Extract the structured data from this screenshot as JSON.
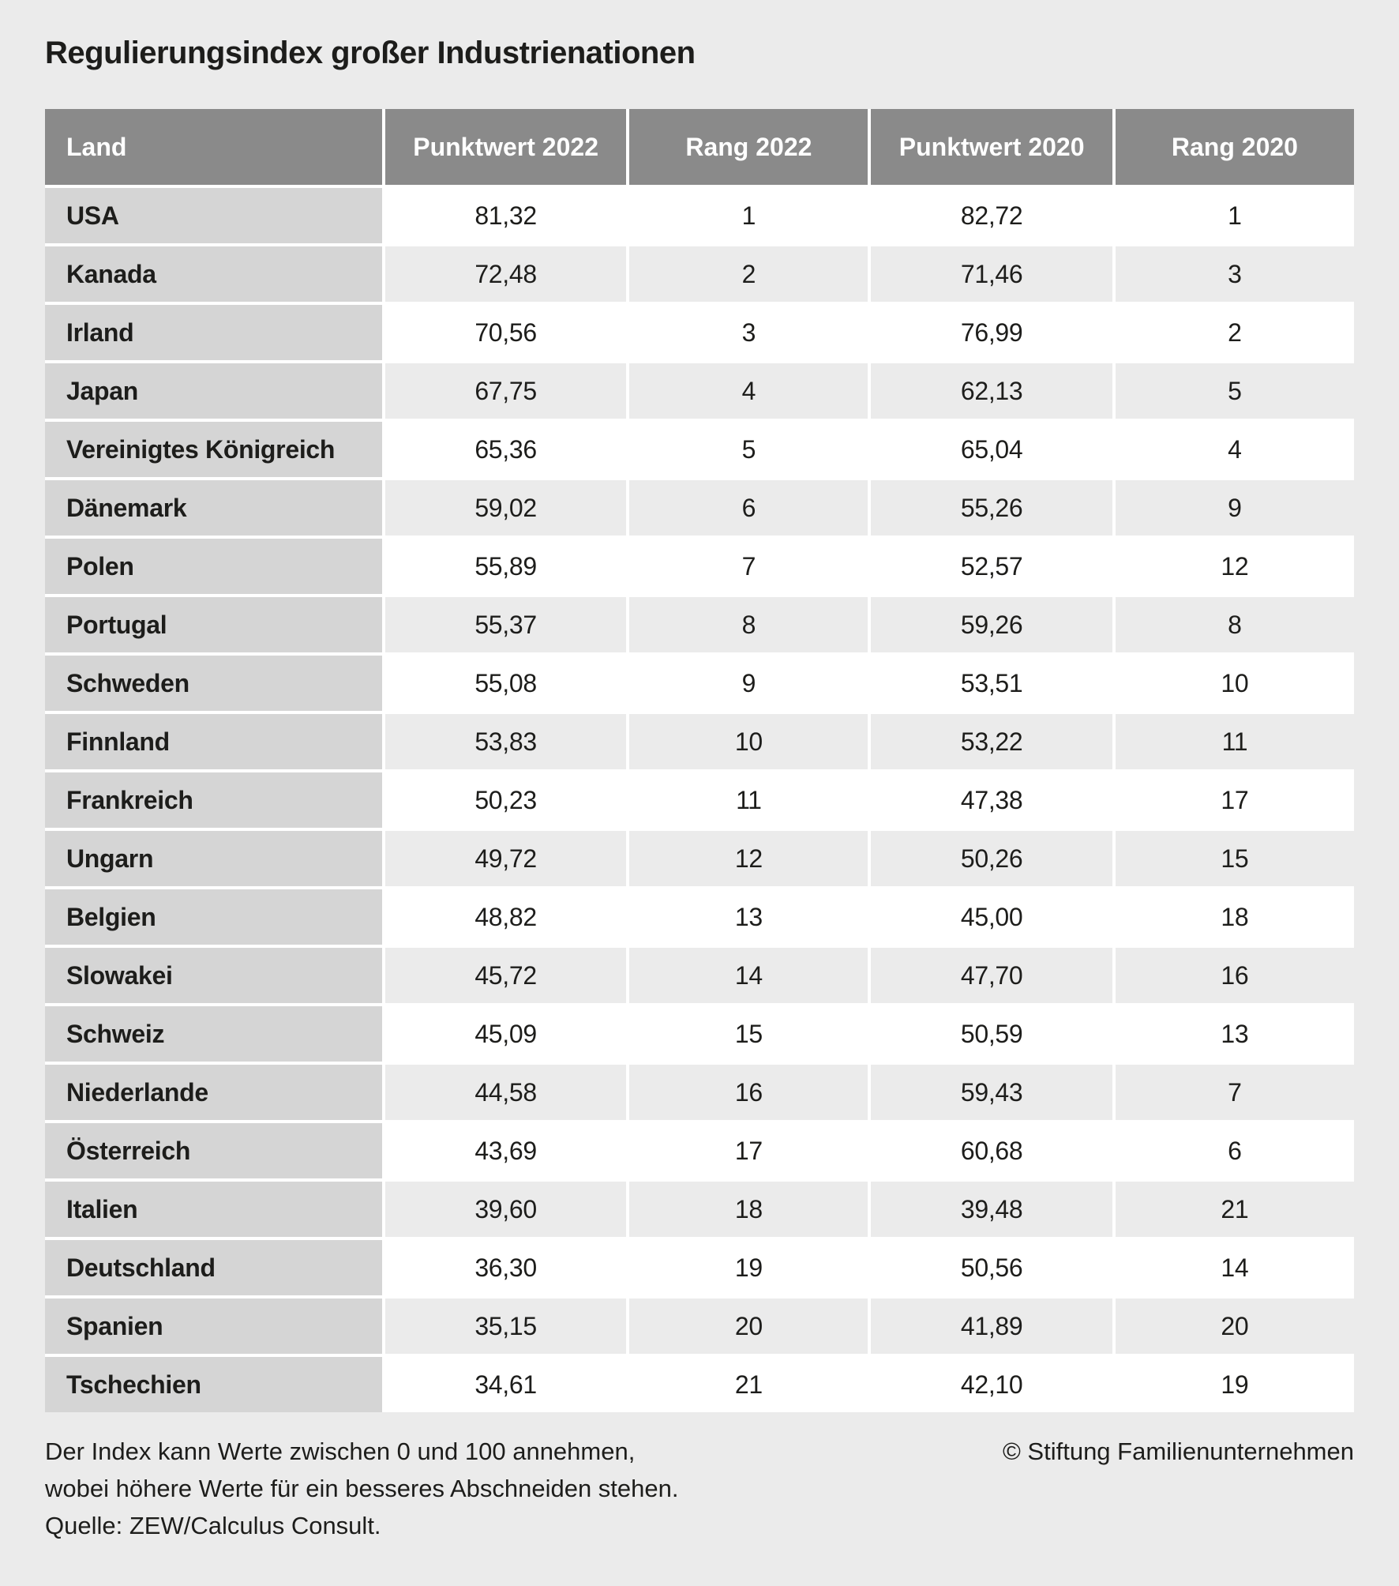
{
  "title": "Regulierungsindex großer Industrienationen",
  "chart_data": {
    "type": "table",
    "title": "Regulierungsindex großer Industrienationen",
    "columns": [
      "Land",
      "Punktwert 2022",
      "Rang 2022",
      "Punktwert 2020",
      "Rang 2020"
    ],
    "rows": [
      [
        "USA",
        "81,32",
        "1",
        "82,72",
        "1"
      ],
      [
        "Kanada",
        "72,48",
        "2",
        "71,46",
        "3"
      ],
      [
        "Irland",
        "70,56",
        "3",
        "76,99",
        "2"
      ],
      [
        "Japan",
        "67,75",
        "4",
        "62,13",
        "5"
      ],
      [
        "Vereinigtes Königreich",
        "65,36",
        "5",
        "65,04",
        "4"
      ],
      [
        "Dänemark",
        "59,02",
        "6",
        "55,26",
        "9"
      ],
      [
        "Polen",
        "55,89",
        "7",
        "52,57",
        "12"
      ],
      [
        "Portugal",
        "55,37",
        "8",
        "59,26",
        "8"
      ],
      [
        "Schweden",
        "55,08",
        "9",
        "53,51",
        "10"
      ],
      [
        "Finnland",
        "53,83",
        "10",
        "53,22",
        "11"
      ],
      [
        "Frankreich",
        "50,23",
        "11",
        "47,38",
        "17"
      ],
      [
        "Ungarn",
        "49,72",
        "12",
        "50,26",
        "15"
      ],
      [
        "Belgien",
        "48,82",
        "13",
        "45,00",
        "18"
      ],
      [
        "Slowakei",
        "45,72",
        "14",
        "47,70",
        "16"
      ],
      [
        "Schweiz",
        "45,09",
        "15",
        "50,59",
        "13"
      ],
      [
        "Niederlande",
        "44,58",
        "16",
        "59,43",
        "7"
      ],
      [
        "Österreich",
        "43,69",
        "17",
        "60,68",
        "6"
      ],
      [
        "Italien",
        "39,60",
        "18",
        "39,48",
        "21"
      ],
      [
        "Deutschland",
        "36,30",
        "19",
        "50,56",
        "14"
      ],
      [
        "Spanien",
        "35,15",
        "20",
        "41,89",
        "20"
      ],
      [
        "Tschechien",
        "34,61",
        "21",
        "42,10",
        "19"
      ]
    ]
  },
  "footer": {
    "note_line1": "Der Index kann Werte zwischen 0 und 100 annehmen,",
    "note_line2": "wobei höhere Werte für ein besseres Abschneiden stehen.",
    "source": "Quelle: ZEW/Calculus Consult.",
    "copyright": "© Stiftung Familienunternehmen"
  },
  "colors": {
    "page_bg": "#ebebeb",
    "header_bg": "#8a8a8a",
    "header_text": "#ffffff",
    "land_column_bg": "#d5d5d5",
    "row_white_bg": "#ffffff",
    "row_alt_bg": "#ebebeb",
    "text": "#1d1d1b"
  }
}
